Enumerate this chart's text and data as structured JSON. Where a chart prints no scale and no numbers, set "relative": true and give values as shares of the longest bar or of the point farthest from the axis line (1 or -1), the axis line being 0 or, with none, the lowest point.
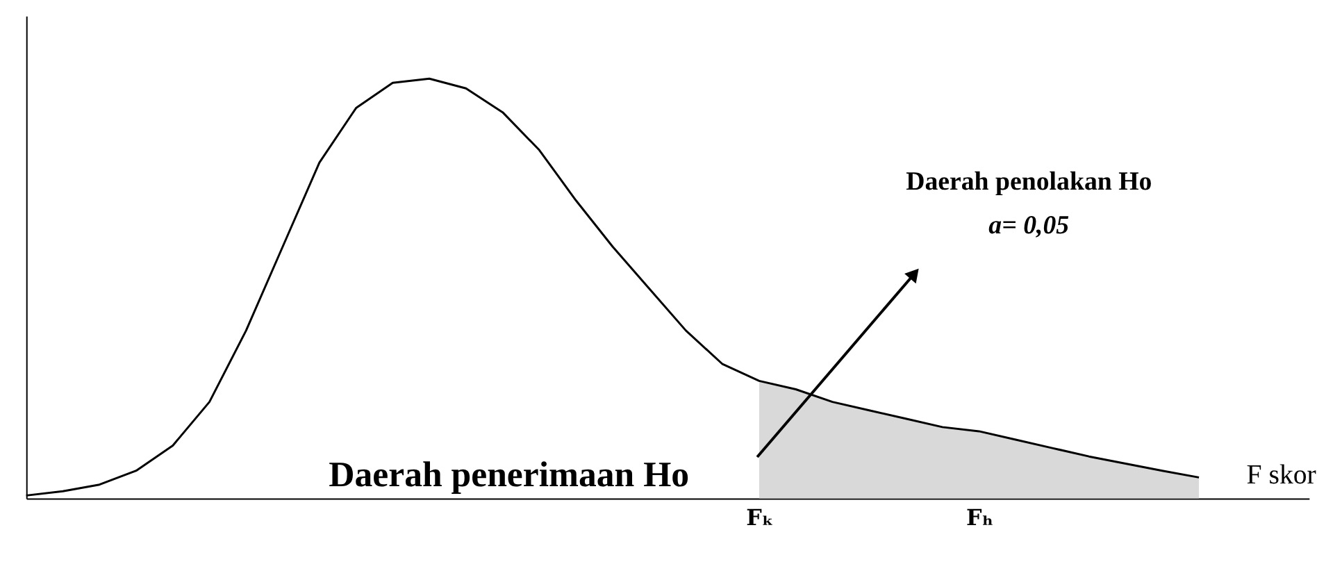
{
  "chart_data": {
    "type": "line",
    "relative": true,
    "xlabel": "F skor",
    "grid": false,
    "categories": [
      null,
      null,
      null,
      null,
      null,
      null,
      null,
      null,
      null,
      null,
      null,
      null,
      null,
      null,
      null,
      null,
      null,
      null,
      null,
      null,
      "Fₖ",
      null,
      null,
      null,
      null,
      null,
      "Fₕ",
      null,
      null,
      null,
      null,
      null,
      null,
      null,
      null,
      null
    ],
    "series": [
      {
        "type": "area",
        "color": "#d9d9d9",
        "values": [
          null,
          null,
          null,
          null,
          null,
          null,
          null,
          null,
          null,
          null,
          null,
          null,
          null,
          null,
          null,
          null,
          null,
          null,
          null,
          null,
          0.28,
          0.26,
          0.23,
          0.21,
          0.19,
          0.17,
          0.16,
          0.14,
          0.12,
          0.1,
          0.083,
          0.066,
          0.05,
          null,
          null,
          null
        ]
      },
      {
        "color": "#000000",
        "values": [
          0.007,
          0.017,
          0.033,
          0.066,
          0.126,
          0.23,
          0.4,
          0.6,
          0.8,
          0.93,
          0.99,
          1.0,
          0.977,
          0.92,
          0.83,
          0.71,
          0.6,
          0.5,
          0.4,
          0.32,
          0.28,
          0.26,
          0.23,
          0.21,
          0.19,
          0.17,
          0.16,
          0.14,
          0.12,
          0.1,
          0.083,
          0.066,
          0.05,
          null,
          null,
          null
        ]
      }
    ],
    "annotations": [
      "Daerah penolakan Ho",
      "a= 0,05",
      "Daerah penerimaan Ho"
    ]
  }
}
